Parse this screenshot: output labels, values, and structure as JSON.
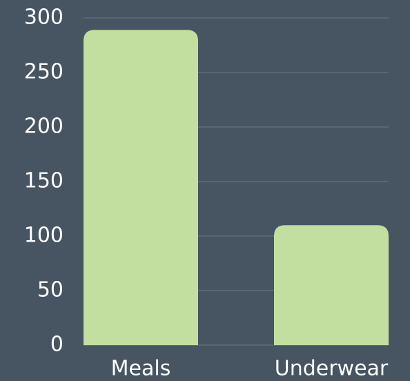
{
  "chart_data": {
    "type": "bar",
    "categories": [
      "Meals",
      "Underwear"
    ],
    "values": [
      289,
      110
    ],
    "color": "#c2df9f",
    "ylim": [
      0,
      300
    ],
    "yticks": [
      0,
      50,
      100,
      150,
      200,
      250,
      300
    ],
    "grid": true
  }
}
